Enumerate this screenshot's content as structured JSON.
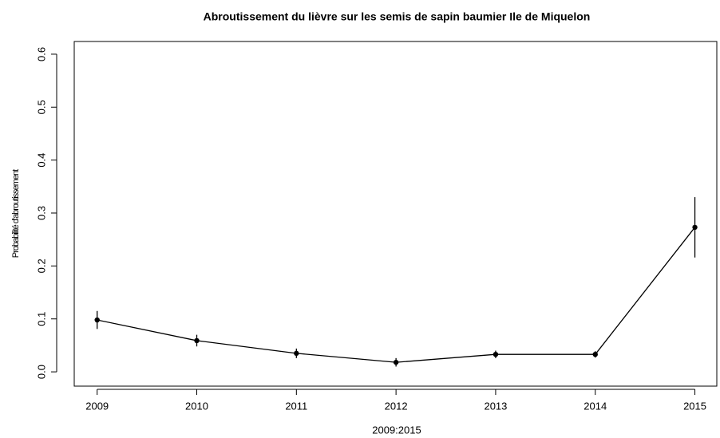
{
  "chart_data": {
    "type": "line",
    "title": "Abroutissement du lièvre sur les semis  de sapin baumier Ile de Miquelon",
    "x_label": "2009:2015",
    "y_label": "Probabilité d'abroutissement",
    "x": [
      2009,
      2010,
      2011,
      2012,
      2013,
      2014,
      2015
    ],
    "series": [
      {
        "name": "Probabilité d'abroutissement",
        "color": "#000000",
        "values": [
          0.098,
          0.059,
          0.035,
          0.018,
          0.033,
          0.033,
          0.273
        ],
        "errors": [
          0.017,
          0.011,
          0.009,
          0.008,
          0.007,
          0.006,
          0.057
        ]
      }
    ],
    "xlim": [
      2008.77,
      2015.22
    ],
    "xticks": [
      2009,
      2010,
      2011,
      2012,
      2013,
      2014,
      2015
    ],
    "ylim": [
      -0.027,
      0.624
    ],
    "yticks": [
      {
        "value": 0,
        "label": "0.0"
      },
      0.1,
      0.2,
      0.3,
      0.4,
      0.5,
      0.6
    ]
  }
}
